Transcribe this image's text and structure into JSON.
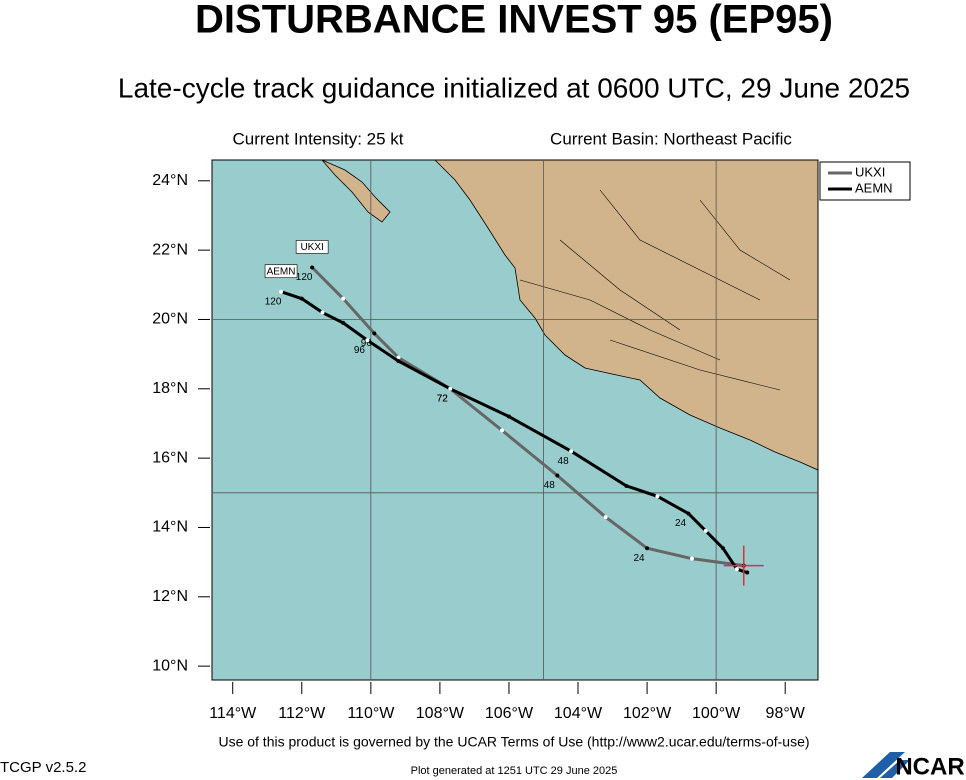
{
  "chart_data": {
    "type": "track",
    "title": "DISTURBANCE INVEST 95 (EP95)",
    "subtitle": "Late-cycle track guidance initialized at 0600 UTC, 29 June 2025",
    "intensity": "Current Intensity: 25 kt",
    "basin": "Current Basin: Northeast Pacific",
    "footer": "Use of this product is governed by the UCAR Terms of Use (http://www2.ucar.edu/terms-of-use)",
    "version": "TCGP v2.5.2",
    "generated": "Plot generated at 1251 UTC   29 June 2025",
    "logo": "NCAR",
    "xlim": [
      -114.6,
      -97.05
    ],
    "ylim": [
      9.6,
      24.6
    ],
    "xticks": [
      {
        "value": -114,
        "label": "114°W"
      },
      {
        "value": -112,
        "label": "112°W"
      },
      {
        "value": -110,
        "label": "110°W"
      },
      {
        "value": -108,
        "label": "108°W"
      },
      {
        "value": -106,
        "label": "106°W"
      },
      {
        "value": -104,
        "label": "104°W"
      },
      {
        "value": -102,
        "label": "102°W"
      },
      {
        "value": -100,
        "label": "100°W"
      },
      {
        "value": -98,
        "label": "98°W"
      }
    ],
    "yticks": [
      {
        "value": 10,
        "label": "10°N"
      },
      {
        "value": 12,
        "label": "12°N"
      },
      {
        "value": 14,
        "label": "14°N"
      },
      {
        "value": 16,
        "label": "16°N"
      },
      {
        "value": 18,
        "label": "18°N"
      },
      {
        "value": 20,
        "label": "20°N"
      },
      {
        "value": 22,
        "label": "22°N"
      },
      {
        "value": 24,
        "label": "24°N"
      }
    ],
    "xgrid": [
      -110,
      -105,
      -100
    ],
    "ygrid": [
      15,
      20
    ],
    "legend": "upper-right",
    "series": [
      {
        "name": "UKXI",
        "color": "#666666",
        "x": [
          -99.2,
          -100.7,
          -102.0,
          -103.2,
          -104.6,
          -106.2,
          -107.7,
          -109.2,
          -109.9,
          -110.8,
          -111.7
        ],
        "values": [
          12.9,
          13.1,
          13.4,
          14.3,
          15.5,
          16.8,
          18.0,
          18.9,
          19.6,
          20.6,
          21.5
        ],
        "point_labels": [
          null,
          null,
          "24",
          null,
          "48",
          null,
          "72",
          null,
          "96",
          null,
          "120"
        ]
      },
      {
        "name": "AEMN",
        "color": "#000000",
        "x": [
          -99.1,
          -99.4,
          -99.8,
          -100.3,
          -100.8,
          -101.7,
          -102.6,
          -104.2,
          -106.0,
          -107.7,
          -109.2,
          -110.1,
          -110.8,
          -111.4,
          -112.0,
          -112.6
        ],
        "values": [
          12.7,
          12.8,
          13.4,
          13.9,
          14.4,
          14.9,
          15.2,
          16.2,
          17.2,
          18.0,
          18.8,
          19.4,
          19.9,
          20.2,
          20.6,
          20.8
        ],
        "point_labels": [
          null,
          null,
          null,
          null,
          "24",
          null,
          null,
          "48",
          null,
          "72",
          null,
          "96",
          null,
          null,
          null,
          "120"
        ]
      }
    ]
  }
}
